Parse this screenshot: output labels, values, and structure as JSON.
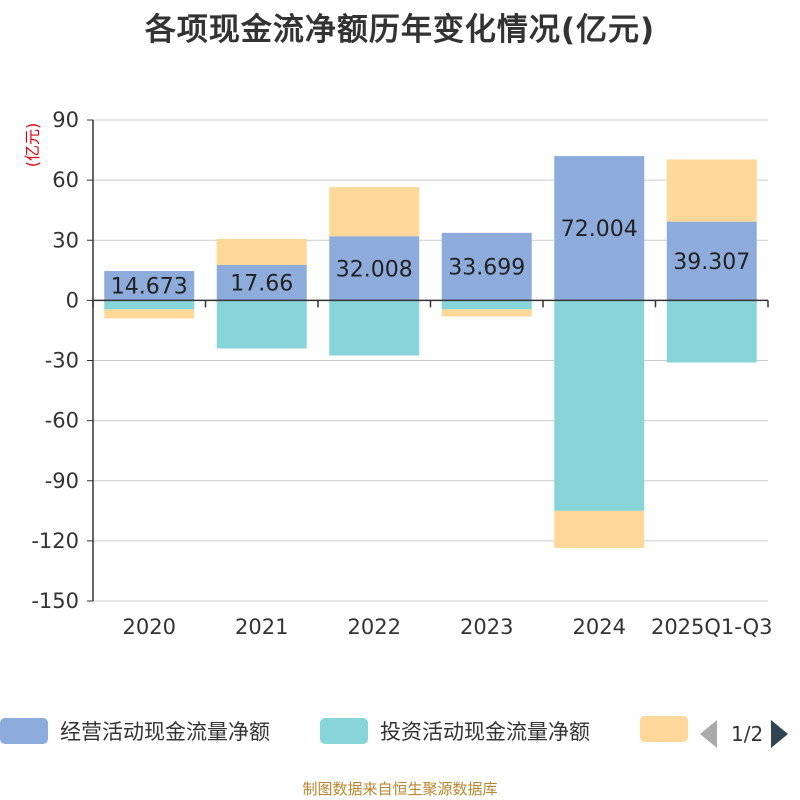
{
  "title": "各项现金流净额历年变化情况(亿元)",
  "unit_label": "(亿元)",
  "source": "制图数据来自恒生聚源数据库",
  "legend": {
    "items": [
      {
        "label": "经营活动现金流量净额",
        "color": "#8eacdb"
      },
      {
        "label": "投资活动现金流量净额",
        "color": "#87d5d8"
      },
      {
        "label": "",
        "color": "#fdd898"
      }
    ],
    "page": "1/2"
  },
  "colors": {
    "axis": "#333333",
    "grid": "#cccccc",
    "unit": "#e0000f"
  },
  "chart_data": {
    "type": "bar",
    "stacked": true,
    "categories": [
      "2020",
      "2021",
      "2022",
      "2023",
      "2024",
      "2025Q1-Q3"
    ],
    "ylim": [
      -150,
      90
    ],
    "yticks": [
      90,
      60,
      30,
      0,
      -30,
      -60,
      -90,
      -120,
      -150
    ],
    "grid": true,
    "legend_position": "bottom",
    "series": [
      {
        "name": "经营活动现金流量净额",
        "color": "#8eacdb",
        "values": [
          14.673,
          17.66,
          32.008,
          33.699,
          72.004,
          39.307
        ],
        "labels": [
          "14.673",
          "17.66",
          "32.008",
          "33.699",
          "72.004",
          "39.307"
        ]
      },
      {
        "name": "投资活动现金流量净额",
        "color": "#87d5d8",
        "values": [
          -4.5,
          -24,
          -27.5,
          -4.5,
          -105,
          -31
        ]
      },
      {
        "color": "#fdd898",
        "values": [
          -4.5,
          13,
          24.5,
          -3.5,
          -18.5,
          31
        ]
      }
    ]
  }
}
